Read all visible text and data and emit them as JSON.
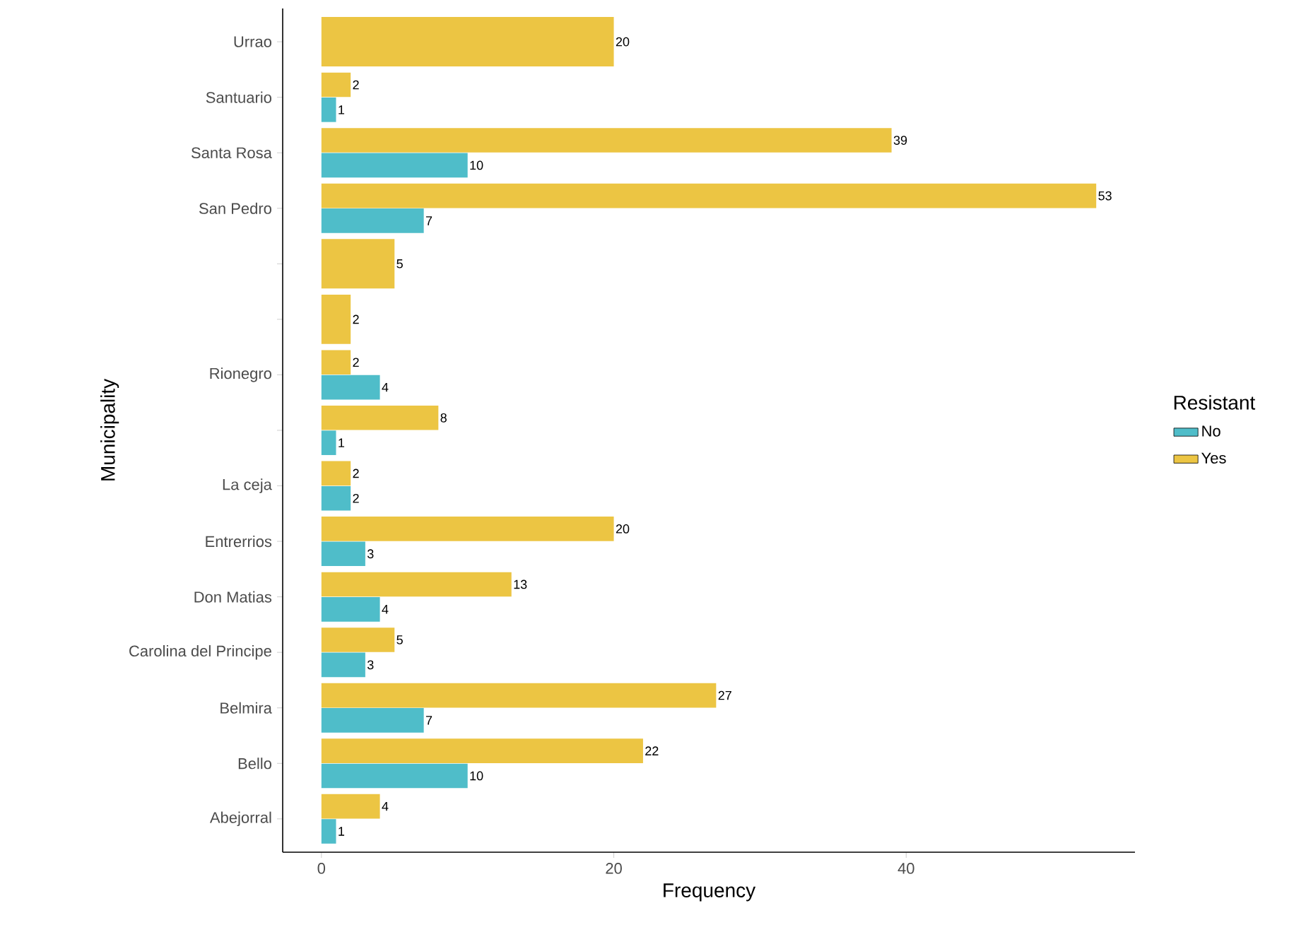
{
  "chart_data": {
    "type": "bar",
    "orientation": "horizontal",
    "xlabel": "Frequency",
    "ylabel": "Municipality",
    "legend_title": "Resistant",
    "legend": "right",
    "data_labels": true,
    "grid": false,
    "categories": [
      "Urrao",
      "Santuario",
      "Santa Rosa",
      "San Pedro",
      null,
      null,
      "Rionegro",
      null,
      "La ceja",
      "Entrerrios",
      "Don Matias",
      "Carolina del Principe",
      "Belmira",
      "Bello",
      "Abejorral"
    ],
    "xlim": [
      -2.65,
      55.65
    ],
    "xticks": [
      0,
      20,
      40
    ],
    "series": [
      {
        "name": "No",
        "color": "#4fbdc9",
        "values": [
          null,
          1,
          10,
          7,
          null,
          null,
          4,
          1,
          2,
          3,
          4,
          3,
          7,
          10,
          1
        ]
      },
      {
        "name": "Yes",
        "color": "#ecc543",
        "values": [
          20,
          2,
          39,
          53,
          5,
          2,
          2,
          8,
          2,
          20,
          13,
          5,
          27,
          22,
          4
        ]
      }
    ]
  }
}
